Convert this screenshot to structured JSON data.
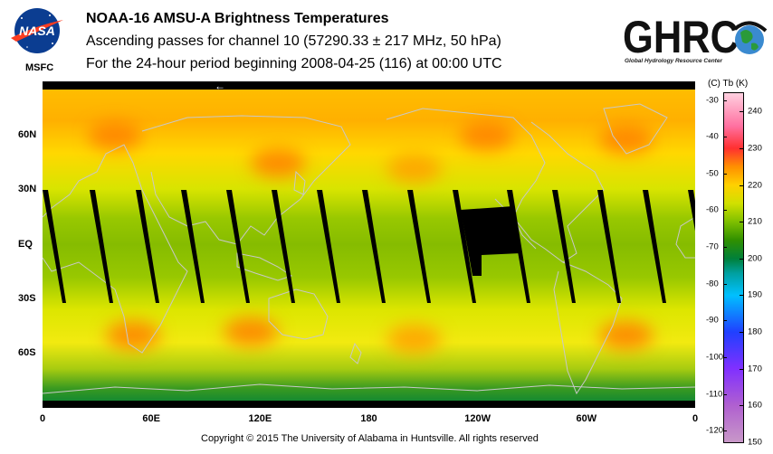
{
  "header": {
    "title": "NOAA-16 AMSU-A Brightness Temperatures",
    "subtitle1": "Ascending passes for channel 10 (57290.33 ± 217 MHz, 50 hPa)",
    "subtitle2": "For the 24-hour period beginning 2008-04-25 (116) at 00:00 UTC"
  },
  "logos": {
    "nasa": "NASA",
    "msfc": "MSFC",
    "ghrc": "GHRC",
    "ghrc_sub": "Global Hydrology Resource Center"
  },
  "footer": {
    "copyright": "Copyright © 2015 The University of Alabama in Huntsville.  All rights reserved"
  },
  "map": {
    "orbit_marker": "←",
    "lat_labels": [
      {
        "text": "60N",
        "lat": 60
      },
      {
        "text": "30N",
        "lat": 30
      },
      {
        "text": "EQ",
        "lat": 0
      },
      {
        "text": "30S",
        "lat": -30
      },
      {
        "text": "60S",
        "lat": -60
      }
    ],
    "lon_labels": [
      {
        "text": "0",
        "lon": 0
      },
      {
        "text": "60E",
        "lon": 60
      },
      {
        "text": "120E",
        "lon": 120
      },
      {
        "text": "180",
        "lon": 180
      },
      {
        "text": "120W",
        "lon": 240
      },
      {
        "text": "60W",
        "lon": 300
      },
      {
        "text": "0",
        "lon": 360
      }
    ],
    "warm_regions": [
      {
        "lon": 40,
        "lat": 60,
        "temp": 225
      },
      {
        "lon": 130,
        "lat": 45,
        "temp": 226
      },
      {
        "lon": 205,
        "lat": 42,
        "temp": 224
      },
      {
        "lon": 245,
        "lat": 60,
        "temp": 226
      },
      {
        "lon": 322,
        "lat": 58,
        "temp": 225
      },
      {
        "lon": 50,
        "lat": -50,
        "temp": 228
      },
      {
        "lon": 115,
        "lat": -48,
        "temp": 225
      },
      {
        "lon": 205,
        "lat": -52,
        "temp": 221
      },
      {
        "lon": 322,
        "lat": -50,
        "temp": 227
      }
    ]
  },
  "colorbar": {
    "header": "(C)  Tb  (K)",
    "celsius": [
      -30,
      -40,
      -50,
      -60,
      -70,
      -80,
      -90,
      -100,
      -110,
      -120
    ],
    "kelvin": [
      240,
      230,
      220,
      210,
      200,
      190,
      180,
      170,
      160,
      150
    ],
    "range_k": [
      150,
      245
    ],
    "stops": [
      {
        "k": 150,
        "color": "#c898c8"
      },
      {
        "k": 160,
        "color": "#b060d0"
      },
      {
        "k": 170,
        "color": "#8030ff"
      },
      {
        "k": 180,
        "color": "#2040ff"
      },
      {
        "k": 190,
        "color": "#00c0ff"
      },
      {
        "k": 196,
        "color": "#00a0a0"
      },
      {
        "k": 200,
        "color": "#00803a"
      },
      {
        "k": 205,
        "color": "#309000"
      },
      {
        "k": 210,
        "color": "#80c000"
      },
      {
        "k": 215,
        "color": "#d0e000"
      },
      {
        "k": 220,
        "color": "#ffd000"
      },
      {
        "k": 225,
        "color": "#ff9000"
      },
      {
        "k": 230,
        "color": "#ff3030"
      },
      {
        "k": 236,
        "color": "#ff70a0"
      },
      {
        "k": 245,
        "color": "#ffd0e0"
      }
    ]
  }
}
